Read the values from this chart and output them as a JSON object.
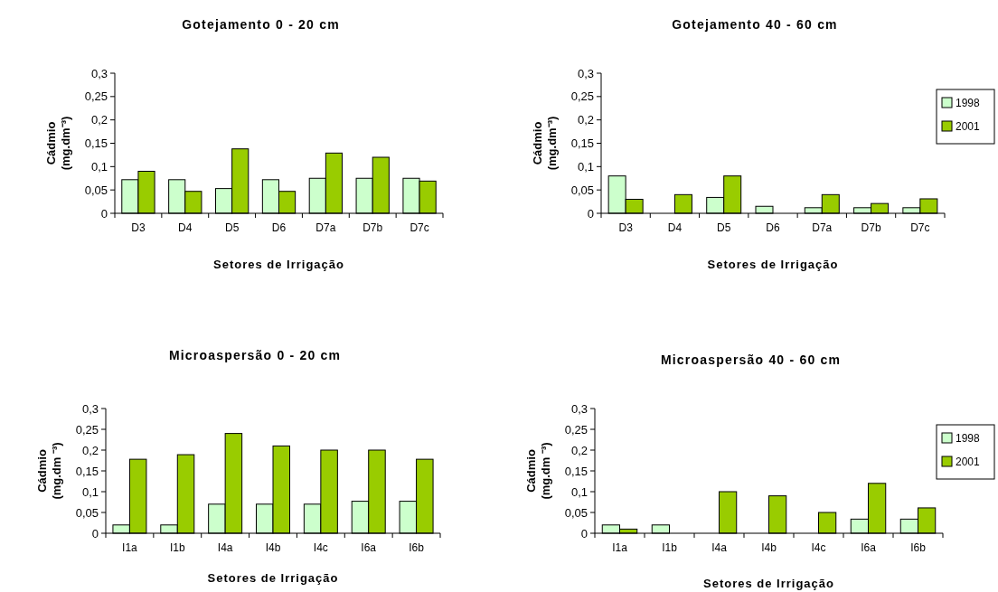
{
  "chart_data": [
    {
      "type": "bar",
      "title": "Gotejamento 0 - 20 cm",
      "xlabel": "Setores de Irrigação",
      "ylabel": "Cádmio (mg.dm⁻³)",
      "categories": [
        "D3",
        "D4",
        "D5",
        "D6",
        "D7a",
        "D7b",
        "D7c"
      ],
      "ylim": [
        0,
        0.3
      ],
      "yticks": [
        {
          "value": 0,
          "label": "0"
        },
        {
          "value": 0.05,
          "label": "0,05"
        },
        {
          "value": 0.1,
          "label": "0,1"
        },
        {
          "value": 0.15,
          "label": "0,15"
        },
        {
          "value": 0.2,
          "label": "0,2"
        },
        {
          "value": 0.25,
          "label": "0,25"
        },
        {
          "value": 0.3,
          "label": "0,3"
        }
      ],
      "grid": false,
      "legend": false,
      "series": [
        {
          "color": "#ccffcc",
          "values": [
            0.072,
            0.072,
            0.053,
            0.072,
            0.075,
            0.075,
            0.075
          ]
        },
        {
          "color": "#99cc00",
          "values": [
            0.09,
            0.047,
            0.138,
            0.047,
            0.129,
            0.12,
            0.069
          ]
        }
      ]
    },
    {
      "type": "bar",
      "title": "Gotejamento 40 - 60 cm",
      "xlabel": "Setores de Irrigação",
      "ylabel": "Cádmio (mg.dm⁻³)",
      "categories": [
        "D3",
        "D4",
        "D5",
        "D6",
        "D7a",
        "D7b",
        "D7c"
      ],
      "ylim": [
        0,
        0.3
      ],
      "yticks": [
        {
          "value": 0,
          "label": "0"
        },
        {
          "value": 0.05,
          "label": "0,05"
        },
        {
          "value": 0.1,
          "label": "0,1"
        },
        {
          "value": 0.15,
          "label": "0,15"
        },
        {
          "value": 0.2,
          "label": "0,2"
        },
        {
          "value": 0.25,
          "label": "0,25"
        },
        {
          "value": 0.3,
          "label": "0,3"
        }
      ],
      "grid": false,
      "legend": "right",
      "series": [
        {
          "name": "1998",
          "color": "#ccffcc",
          "values": [
            0.08,
            0,
            0.034,
            0.015,
            0.012,
            0.012,
            0.012
          ]
        },
        {
          "name": "2001",
          "color": "#99cc00",
          "values": [
            0.03,
            0.04,
            0.08,
            0,
            0.04,
            0.021,
            0.031
          ]
        }
      ]
    },
    {
      "type": "bar",
      "title": "Microaspersão 0 - 20 cm",
      "xlabel": "Setores de Irrigação",
      "ylabel": "Cádmio (mg.dm ⁻³)",
      "categories": [
        "I1a",
        "I1b",
        "I4a",
        "I4b",
        "I4c",
        "I6a",
        "I6b"
      ],
      "ylim": [
        0,
        0.3
      ],
      "yticks": [
        {
          "value": 0,
          "label": "0"
        },
        {
          "value": 0.05,
          "label": "0,05"
        },
        {
          "value": 0.1,
          "label": "0,1"
        },
        {
          "value": 0.15,
          "label": "0,15"
        },
        {
          "value": 0.2,
          "label": "0,2"
        },
        {
          "value": 0.25,
          "label": "0,25"
        },
        {
          "value": 0.3,
          "label": "0,3"
        }
      ],
      "grid": false,
      "legend": false,
      "series": [
        {
          "color": "#ccffcc",
          "values": [
            0.02,
            0.02,
            0.07,
            0.07,
            0.07,
            0.077,
            0.077
          ]
        },
        {
          "color": "#99cc00",
          "values": [
            0.178,
            0.189,
            0.24,
            0.21,
            0.2,
            0.2,
            0.178
          ]
        }
      ]
    },
    {
      "type": "bar",
      "title": "Microaspersão 40 - 60 cm",
      "xlabel": "Setores de Irrigação",
      "ylabel": "Cádmio (mg.dm ⁻³)",
      "categories": [
        "I1a",
        "I1b",
        "I4a",
        "I4b",
        "I4c",
        "I6a",
        "I6b"
      ],
      "ylim": [
        0,
        0.3
      ],
      "yticks": [
        {
          "value": 0,
          "label": "0"
        },
        {
          "value": 0.05,
          "label": "0,05"
        },
        {
          "value": 0.1,
          "label": "0,1"
        },
        {
          "value": 0.15,
          "label": "0,15"
        },
        {
          "value": 0.2,
          "label": "0,2"
        },
        {
          "value": 0.25,
          "label": "0,25"
        },
        {
          "value": 0.3,
          "label": "0,3"
        }
      ],
      "grid": false,
      "legend": "right",
      "series": [
        {
          "name": "1998",
          "color": "#ccffcc",
          "values": [
            0.02,
            0.02,
            0,
            0,
            0,
            0.034,
            0.034
          ]
        },
        {
          "name": "2001",
          "color": "#99cc00",
          "values": [
            0.01,
            0,
            0.1,
            0.09,
            0.05,
            0.12,
            0.061
          ]
        }
      ]
    }
  ]
}
